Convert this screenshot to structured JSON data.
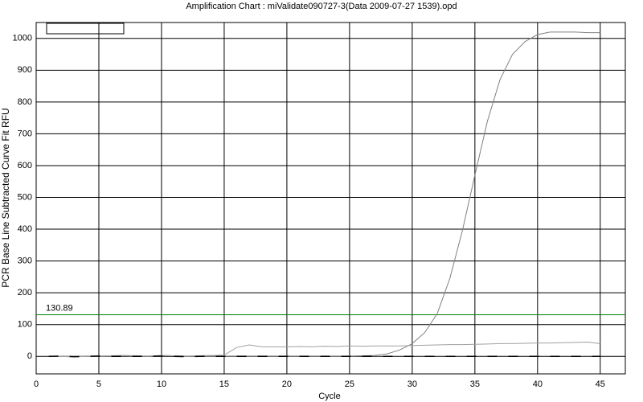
{
  "chart_data": {
    "type": "line",
    "title": "Amplification Chart : miValidate090727-3(Data 2009-07-27 1539).opd",
    "xlabel": "Cycle",
    "ylabel": "PCR Base Line Subtracted Curve Fit RFU",
    "x": [
      1,
      2,
      3,
      4,
      5,
      6,
      7,
      8,
      9,
      10,
      11,
      12,
      13,
      14,
      15,
      16,
      17,
      18,
      19,
      20,
      21,
      22,
      23,
      24,
      25,
      26,
      27,
      28,
      29,
      30,
      31,
      32,
      33,
      34,
      35,
      36,
      37,
      38,
      39,
      40,
      41,
      42,
      43,
      44,
      45
    ],
    "series": [
      {
        "color": "#808080",
        "dash": false,
        "values": [
          0,
          0,
          0,
          1,
          1,
          1,
          2,
          1,
          1,
          2,
          2,
          1,
          1,
          1,
          1,
          1,
          1,
          1,
          1,
          1,
          1,
          1,
          1,
          1,
          1,
          2,
          3,
          8,
          20,
          40,
          75,
          135,
          245,
          395,
          570,
          740,
          870,
          950,
          990,
          1012,
          1020,
          1020,
          1020,
          1018,
          1018
        ]
      },
      {
        "color": "#a0a0a0",
        "dash": false,
        "values": [
          0,
          0,
          -2,
          0,
          1,
          2,
          3,
          2,
          1,
          3,
          2,
          1,
          2,
          3,
          4,
          28,
          36,
          30,
          30,
          30,
          31,
          30,
          32,
          31,
          33,
          32,
          33,
          33,
          33,
          34,
          35,
          36,
          37,
          37,
          38,
          39,
          40,
          40,
          41,
          42,
          42,
          43,
          44,
          45,
          40
        ]
      },
      {
        "color": "#000000",
        "dash": true,
        "values": [
          0,
          1,
          -1,
          0,
          1,
          0,
          0,
          0,
          0,
          1,
          0,
          -1,
          0,
          0,
          0,
          0,
          0,
          0,
          0,
          0,
          0,
          0,
          0,
          0,
          0,
          0,
          0,
          0,
          0,
          0,
          0,
          0,
          0,
          0,
          0,
          0,
          0,
          0,
          0,
          0,
          0,
          0,
          0,
          0,
          0
        ]
      }
    ],
    "threshold": {
      "value": 130.89,
      "color": "#008000"
    },
    "xlim": [
      0,
      47
    ],
    "ylim": [
      -55,
      1050
    ],
    "xticks": [
      0,
      5,
      10,
      15,
      20,
      25,
      30,
      35,
      40,
      45
    ],
    "yticks": [
      0,
      100,
      200,
      300,
      400,
      500,
      600,
      700,
      800,
      900,
      1000
    ],
    "grid": true
  }
}
